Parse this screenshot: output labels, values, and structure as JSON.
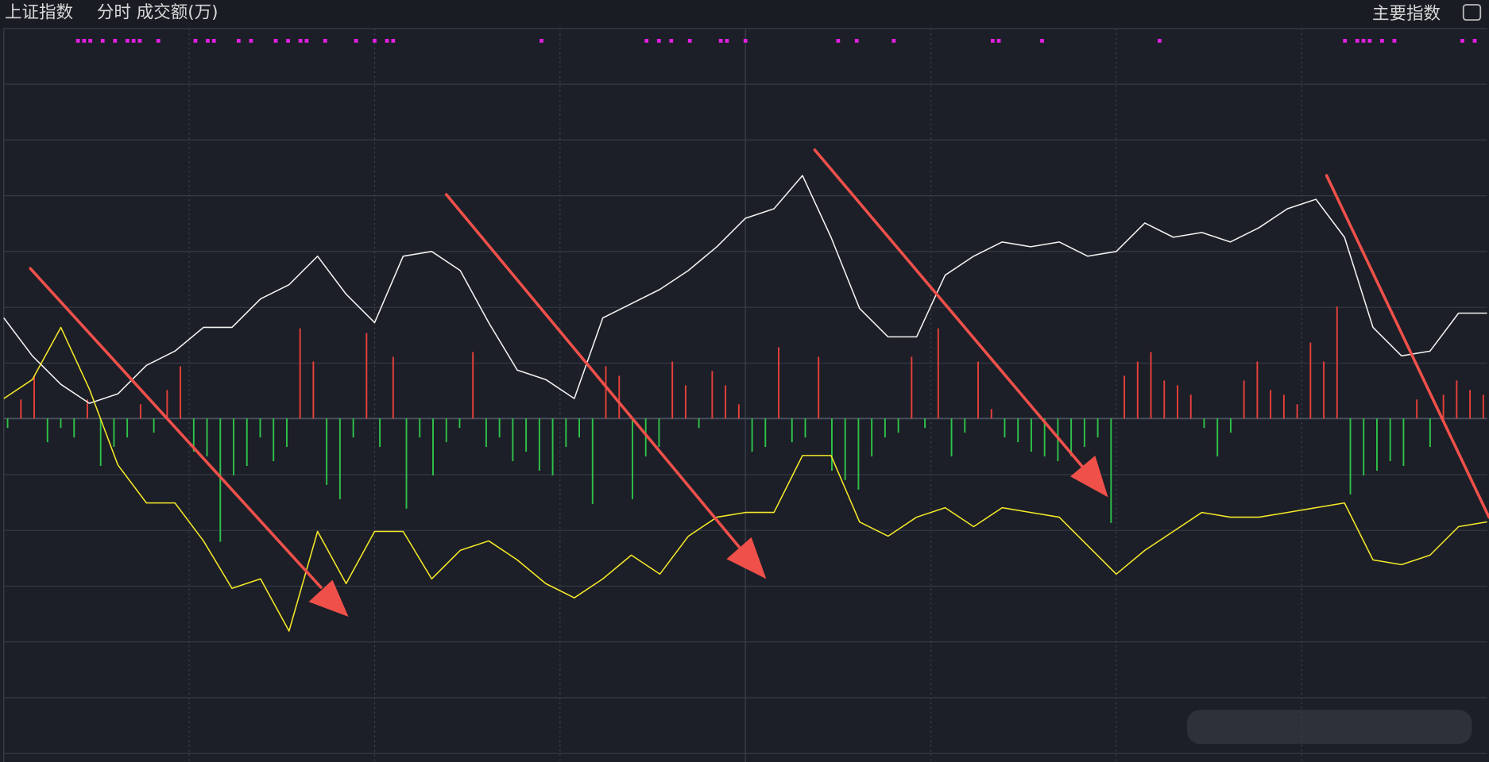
{
  "header": {
    "title": "上证指数",
    "subtitle": "分时 成交额(万)",
    "button": "主要指数"
  },
  "chart_data": {
    "type": "line",
    "xlim": [
      0,
      240
    ],
    "ylim": [
      0,
      764
    ],
    "series": [
      {
        "color": "#f2f2f2",
        "values": [
          459,
          419,
          389,
          369,
          379,
          409,
          424,
          449,
          449,
          479,
          494,
          524,
          484,
          454,
          524,
          529,
          509,
          454,
          404,
          394,
          374,
          459,
          474,
          489,
          509,
          534,
          564,
          574,
          609,
          544,
          469,
          439,
          439,
          504,
          524,
          539,
          534,
          539,
          524,
          529,
          559,
          544,
          549,
          539,
          554,
          574,
          584,
          544,
          449,
          419,
          424,
          464,
          464
        ]
      },
      {
        "color": "#f5e829",
        "values": [
          374,
          394,
          449,
          384,
          304,
          264,
          264,
          224,
          174,
          184,
          129,
          234,
          179,
          234,
          234,
          184,
          214,
          224,
          204,
          179,
          164,
          184,
          209,
          189,
          229,
          249,
          254,
          254,
          314,
          314,
          244,
          229,
          249,
          259,
          239,
          259,
          254,
          249,
          219,
          189,
          214,
          234,
          254,
          249,
          249,
          254,
          259,
          264,
          204,
          199,
          209,
          239,
          244
        ]
      }
    ],
    "bars": {
      "up_color": "#e8403a",
      "down_color": "#2fc24a",
      "y2lim": [
        -353,
        411
      ],
      "values": [
        -10,
        20,
        45,
        -25,
        -10,
        -20,
        20,
        -50,
        -30,
        -20,
        15,
        -15,
        30,
        55,
        -35,
        -40,
        -130,
        -60,
        -50,
        -20,
        -45,
        -30,
        95,
        60,
        -70,
        -85,
        -20,
        90,
        -30,
        65,
        -95,
        -20,
        -60,
        -25,
        -10,
        70,
        -30,
        -20,
        -45,
        -35,
        -55,
        -60,
        -30,
        -20,
        -90,
        55,
        45,
        -85,
        -40,
        -30,
        60,
        35,
        -10,
        50,
        35,
        15,
        -35,
        -30,
        75,
        -25,
        -20,
        65,
        -55,
        -65,
        -75,
        -40,
        -20,
        -15,
        65,
        -10,
        95,
        -40,
        -15,
        60,
        10,
        -20,
        -25,
        -35,
        -40,
        -45,
        -40,
        -30,
        -20,
        -110,
        45,
        60,
        70,
        40,
        35,
        25,
        -10,
        -40,
        -15,
        40,
        60,
        30,
        25,
        15,
        80,
        60,
        118,
        -80,
        -60,
        -55,
        -45,
        -50,
        20,
        -30,
        25,
        40,
        30,
        25
      ]
    },
    "signals": {
      "color": "#e020e0",
      "values": [
        12,
        13,
        14,
        16,
        18,
        20,
        21,
        22,
        25,
        31,
        33,
        34,
        38,
        40,
        44,
        46,
        48,
        49,
        52,
        57,
        60,
        62,
        63,
        87,
        104,
        106,
        108,
        111,
        116,
        117,
        120,
        135,
        138,
        144,
        160,
        161,
        168,
        187,
        217,
        219,
        220,
        221,
        223,
        225,
        236,
        238
      ]
    }
  }
}
